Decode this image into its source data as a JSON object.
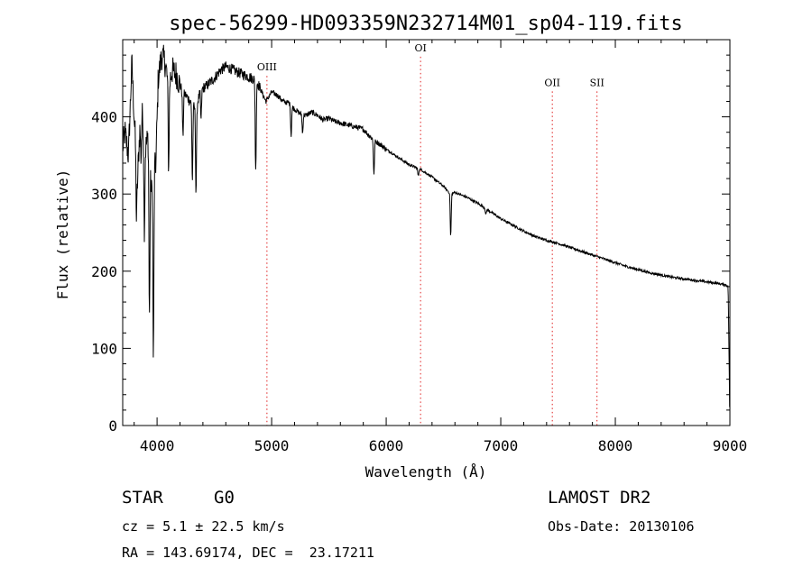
{
  "chart_data": {
    "type": "line",
    "title": "spec-56299-HD093359N232714M01_sp04-119.fits",
    "xlabel": "Wavelength (Å)",
    "ylabel": "Flux (relative)",
    "xlim": [
      3700,
      9000
    ],
    "ylim": [
      0,
      500
    ],
    "x_ticks": [
      4000,
      5000,
      6000,
      7000,
      8000,
      9000
    ],
    "y_ticks": [
      0,
      100,
      200,
      300,
      400
    ],
    "grid": false,
    "spectrum_anchors": {
      "x": [
        3700,
        3720,
        3750,
        3780,
        3800,
        3830,
        3860,
        3900,
        3930,
        3950,
        3970,
        3990,
        4010,
        4040,
        4070,
        4101,
        4130,
        4170,
        4200,
        4240,
        4290,
        4340,
        4380,
        4430,
        4500,
        4550,
        4600,
        4650,
        4700,
        4750,
        4800,
        4830,
        4861,
        4890,
        4920,
        4950,
        5000,
        5050,
        5100,
        5150,
        5200,
        5250,
        5300,
        5350,
        5400,
        5450,
        5500,
        5550,
        5600,
        5650,
        5700,
        5750,
        5800,
        5850,
        5890,
        5950,
        6000,
        6100,
        6200,
        6300,
        6400,
        6500,
        6563,
        6600,
        6700,
        6800,
        6900,
        7000,
        7100,
        7200,
        7300,
        7400,
        7500,
        7600,
        7700,
        7800,
        7900,
        8000,
        8100,
        8200,
        8300,
        8400,
        8500,
        8600,
        8700,
        8800,
        8900,
        8970,
        8985,
        9000
      ],
      "flux": [
        360,
        380,
        350,
        470,
        400,
        320,
        420,
        360,
        380,
        300,
        330,
        340,
        450,
        480,
        470,
        440,
        460,
        455,
        440,
        430,
        420,
        410,
        435,
        440,
        450,
        460,
        465,
        462,
        458,
        455,
        452,
        450,
        448,
        440,
        430,
        420,
        432,
        428,
        420,
        418,
        410,
        404,
        402,
        406,
        402,
        396,
        398,
        394,
        392,
        390,
        388,
        386,
        384,
        376,
        370,
        364,
        358,
        348,
        338,
        332,
        322,
        310,
        300,
        302,
        296,
        288,
        278,
        268,
        260,
        252,
        245,
        240,
        236,
        231,
        226,
        221,
        216,
        211,
        206,
        202,
        198,
        195,
        192,
        190,
        188,
        186,
        184,
        182,
        180,
        0
      ]
    },
    "absorption_lines": [
      {
        "x": 3820,
        "depth": 80
      },
      {
        "x": 3860,
        "depth": 70
      },
      {
        "x": 3889,
        "depth": 120
      },
      {
        "x": 3933,
        "depth": 230
      },
      {
        "x": 3968,
        "depth": 240
      },
      {
        "x": 4101,
        "depth": 110
      },
      {
        "x": 4226,
        "depth": 60
      },
      {
        "x": 4308,
        "depth": 100
      },
      {
        "x": 4340,
        "depth": 110
      },
      {
        "x": 4384,
        "depth": 40
      },
      {
        "x": 4861,
        "depth": 120
      },
      {
        "x": 5170,
        "depth": 40
      },
      {
        "x": 5270,
        "depth": 25
      },
      {
        "x": 5893,
        "depth": 45
      },
      {
        "x": 6280,
        "depth": 10
      },
      {
        "x": 6563,
        "depth": 55
      },
      {
        "x": 6870,
        "depth": 8
      }
    ],
    "emission_markers": [
      {
        "label": "OIII",
        "x": 4959,
        "label_flux": 460
      },
      {
        "label": "OI",
        "x": 6300,
        "label_flux": 485
      },
      {
        "label": "OII",
        "x": 7450,
        "label_flux": 440
      },
      {
        "label": "SII",
        "x": 7840,
        "label_flux": 440
      }
    ],
    "colors": {
      "spectrum": "#000000",
      "marker_line": "#e02020",
      "axes": "#000000"
    }
  },
  "info": {
    "class_label": "STAR",
    "subclass": "G0",
    "survey": "LAMOST DR2",
    "cz": "cz = 5.1 ± 22.5 km/s",
    "obs_date": "Obs-Date: 20130106",
    "radec": "RA = 143.69174, DEC =  23.17211"
  }
}
